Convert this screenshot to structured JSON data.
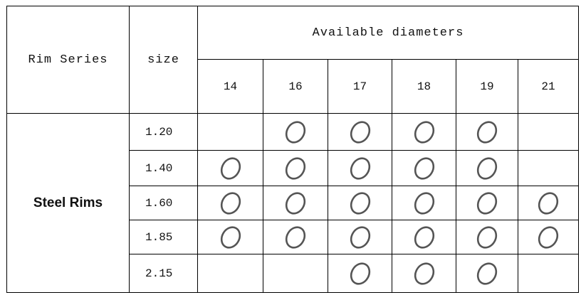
{
  "headers": {
    "rim_series": "Rim Series",
    "size": "size",
    "available": "Available diameters"
  },
  "diameters": [
    "14",
    "16",
    "17",
    "18",
    "19",
    "21"
  ],
  "series": "Steel Rims",
  "rows": [
    {
      "size": "1.20",
      "available": [
        false,
        true,
        true,
        true,
        true,
        false
      ]
    },
    {
      "size": "1.40",
      "available": [
        true,
        true,
        true,
        true,
        true,
        false
      ]
    },
    {
      "size": "1.60",
      "available": [
        true,
        true,
        true,
        true,
        true,
        true
      ]
    },
    {
      "size": "1.85",
      "available": [
        true,
        true,
        true,
        true,
        true,
        true
      ]
    },
    {
      "size": "2.15",
      "available": [
        false,
        false,
        true,
        true,
        true,
        false
      ]
    }
  ],
  "icon": "rim-ring-icon",
  "ring_color": "#555555"
}
